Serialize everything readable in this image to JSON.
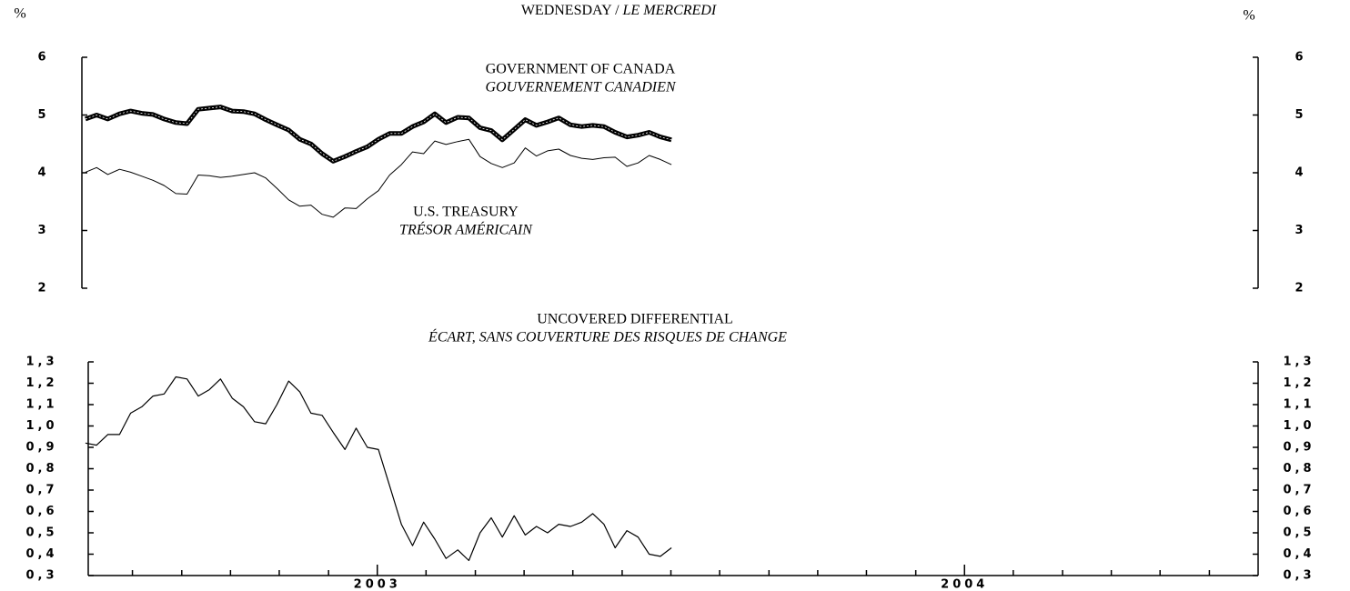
{
  "chart_data": [
    {
      "type": "line",
      "title": [
        "WEDNESDAY / ",
        "LE MERCREDI"
      ],
      "y_unit": "%",
      "y2_unit": "%",
      "ylim": [
        2,
        6
      ],
      "yticks": [
        2,
        3,
        4,
        5,
        6
      ],
      "y2lim": [
        2,
        6
      ],
      "y2ticks": [
        2,
        3,
        4,
        5,
        6
      ],
      "xlim": [
        2002.5,
        2004.5
      ],
      "x": [
        2002.503,
        2002.522,
        2002.541,
        2002.561,
        2002.58,
        2002.599,
        2002.618,
        2002.637,
        2002.657,
        2002.676,
        2002.695,
        2002.714,
        2002.733,
        2002.753,
        2002.772,
        2002.791,
        2002.81,
        2002.829,
        2002.849,
        2002.868,
        2002.887,
        2002.906,
        2002.925,
        2002.945,
        2002.964,
        2002.983,
        2003.002,
        2003.021,
        2003.041,
        2003.06,
        2003.079,
        2003.098,
        2003.117,
        2003.137,
        2003.156,
        2003.175,
        2003.194,
        2003.213,
        2003.233,
        2003.252,
        2003.271,
        2003.29,
        2003.309,
        2003.329,
        2003.348,
        2003.367,
        2003.386,
        2003.405,
        2003.425,
        2003.444,
        2003.463,
        2003.482,
        2003.501
      ],
      "series": [
        {
          "name": "GOVERNMENT OF CANADA",
          "name_fr": "GOUVERNEMENT CANADIEN",
          "color": "#000000",
          "line_width": 5,
          "values": [
            4.93,
            5.0,
            4.93,
            5.02,
            5.07,
            5.03,
            5.01,
            4.93,
            4.87,
            4.85,
            5.1,
            5.12,
            5.14,
            5.07,
            5.06,
            5.02,
            4.92,
            4.83,
            4.74,
            4.58,
            4.5,
            4.33,
            4.2,
            4.28,
            4.37,
            4.45,
            4.58,
            4.68,
            4.68,
            4.8,
            4.88,
            5.02,
            4.87,
            4.96,
            4.95,
            4.78,
            4.73,
            4.57,
            4.75,
            4.92,
            4.82,
            4.88,
            4.95,
            4.83,
            4.8,
            4.82,
            4.8,
            4.7,
            4.62,
            4.65,
            4.7,
            4.62,
            4.57
          ]
        },
        {
          "name": "U.S. TREASURY",
          "name_fr": "TRÉSOR AMÉRICAIN",
          "color": "#000000",
          "line_width": 1,
          "values": [
            4.01,
            4.09,
            3.97,
            4.06,
            4.01,
            3.94,
            3.87,
            3.78,
            3.64,
            3.63,
            3.96,
            3.95,
            3.92,
            3.94,
            3.97,
            4.0,
            3.91,
            3.73,
            3.53,
            3.42,
            3.44,
            3.28,
            3.23,
            3.39,
            3.38,
            3.55,
            3.69,
            3.96,
            4.14,
            4.36,
            4.33,
            4.55,
            4.49,
            4.54,
            4.58,
            4.28,
            4.16,
            4.09,
            4.17,
            4.43,
            4.29,
            4.38,
            4.41,
            4.3,
            4.25,
            4.23,
            4.26,
            4.27,
            4.11,
            4.17,
            4.3,
            4.23,
            4.14
          ]
        }
      ]
    },
    {
      "type": "line",
      "title": "UNCOVERED DIFFERENTIAL",
      "subtitle": "ÉCART, SANS COUVERTURE DES RISQUES DE CHANGE",
      "ylim": [
        0.3,
        1.3
      ],
      "yticks": [
        {
          "value": 0.3,
          "label": "0,3"
        },
        {
          "value": 0.4,
          "label": "0,4"
        },
        {
          "value": 0.5,
          "label": "0,5"
        },
        {
          "value": 0.6,
          "label": "0,6"
        },
        {
          "value": 0.7,
          "label": "0,7"
        },
        {
          "value": 0.8,
          "label": "0,8"
        },
        {
          "value": 0.9,
          "label": "0,9"
        },
        {
          "value": 1.0,
          "label": "1,0"
        },
        {
          "value": 1.1,
          "label": "1,1"
        },
        {
          "value": 1.2,
          "label": "1,2"
        },
        {
          "value": 1.3,
          "label": "1,3"
        }
      ],
      "y2lim": [
        0.3,
        1.3
      ],
      "y2ticks": [
        {
          "value": 0.3,
          "label": "0,3"
        },
        {
          "value": 0.4,
          "label": "0,4"
        },
        {
          "value": 0.5,
          "label": "0,5"
        },
        {
          "value": 0.6,
          "label": "0,6"
        },
        {
          "value": 0.7,
          "label": "0,7"
        },
        {
          "value": 0.8,
          "label": "0,8"
        },
        {
          "value": 0.9,
          "label": "0,9"
        },
        {
          "value": 1.0,
          "label": "1,0"
        },
        {
          "value": 1.1,
          "label": "1,1"
        },
        {
          "value": 1.2,
          "label": "1,2"
        },
        {
          "value": 1.3,
          "label": "1,3"
        }
      ],
      "xlim": [
        2002.5,
        2004.5
      ],
      "xticks": [
        2003,
        2004
      ],
      "xminorticks": [
        2002.583,
        2002.667,
        2002.75,
        2002.833,
        2002.917,
        2003.083,
        2003.167,
        2003.25,
        2003.333,
        2003.417,
        2003.5,
        2003.583,
        2003.667,
        2003.75,
        2003.833,
        2003.917,
        2004.083,
        2004.167,
        2004.25,
        2004.333,
        2004.417
      ],
      "x": [
        2002.503,
        2002.522,
        2002.541,
        2002.561,
        2002.58,
        2002.599,
        2002.618,
        2002.637,
        2002.657,
        2002.676,
        2002.695,
        2002.714,
        2002.733,
        2002.753,
        2002.772,
        2002.791,
        2002.81,
        2002.829,
        2002.849,
        2002.868,
        2002.887,
        2002.906,
        2002.925,
        2002.945,
        2002.964,
        2002.983,
        2003.002,
        2003.021,
        2003.041,
        2003.06,
        2003.079,
        2003.098,
        2003.117,
        2003.137,
        2003.156,
        2003.175,
        2003.194,
        2003.213,
        2003.233,
        2003.252,
        2003.271,
        2003.29,
        2003.309,
        2003.329,
        2003.348,
        2003.367,
        2003.386,
        2003.405,
        2003.425,
        2003.444,
        2003.463,
        2003.482,
        2003.501
      ],
      "series": [
        {
          "color": "#000000",
          "line_width": 1.2,
          "values": [
            0.92,
            0.91,
            0.96,
            0.96,
            1.06,
            1.09,
            1.14,
            1.15,
            1.23,
            1.22,
            1.14,
            1.17,
            1.22,
            1.13,
            1.09,
            1.02,
            1.01,
            1.1,
            1.21,
            1.16,
            1.06,
            1.05,
            0.97,
            0.89,
            0.99,
            0.9,
            0.89,
            0.72,
            0.54,
            0.44,
            0.55,
            0.47,
            0.38,
            0.42,
            0.37,
            0.5,
            0.57,
            0.48,
            0.58,
            0.49,
            0.53,
            0.5,
            0.54,
            0.53,
            0.55,
            0.59,
            0.54,
            0.43,
            0.51,
            0.48,
            0.4,
            0.39,
            0.43
          ]
        }
      ]
    }
  ]
}
